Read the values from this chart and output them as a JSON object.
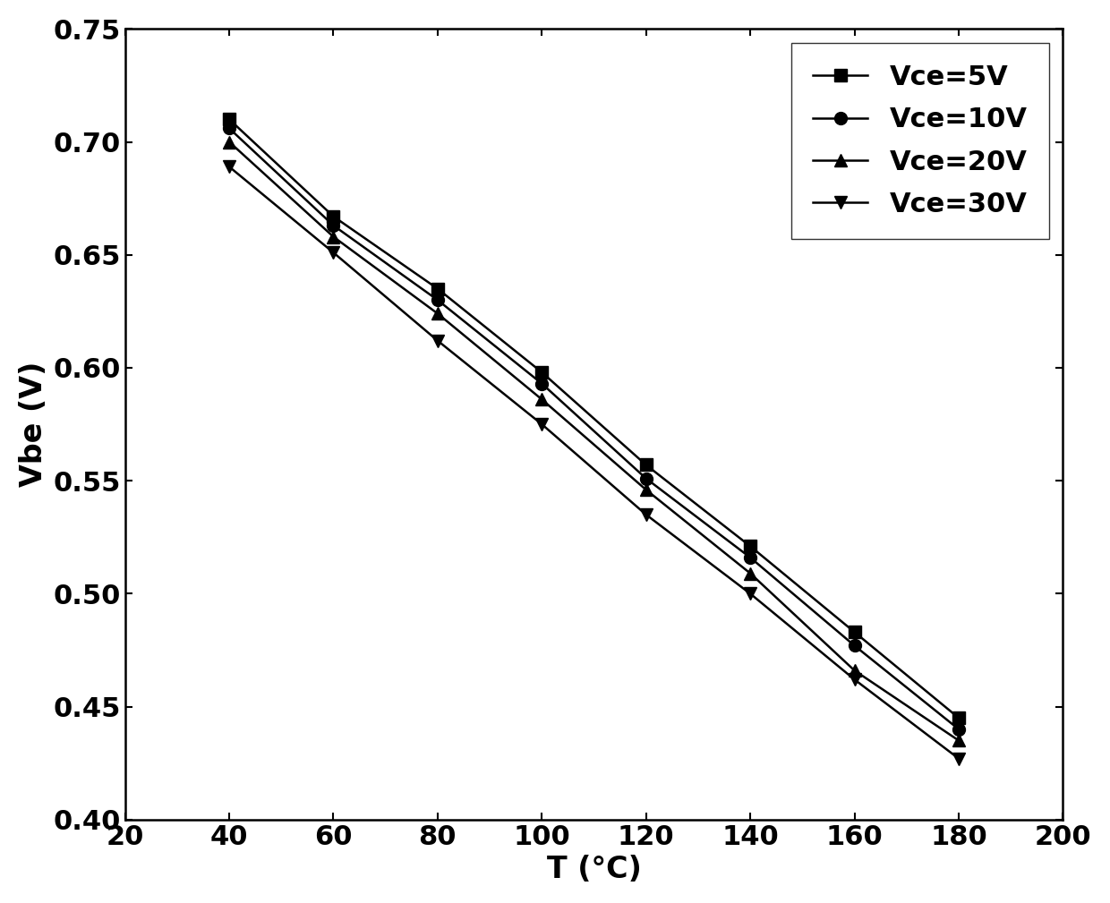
{
  "xlabel": "T (°C)",
  "ylabel": "Vbe (V)",
  "xlim": [
    20,
    200
  ],
  "ylim": [
    0.4,
    0.75
  ],
  "xticks": [
    20,
    40,
    60,
    80,
    100,
    120,
    140,
    160,
    180,
    200
  ],
  "yticks": [
    0.4,
    0.45,
    0.5,
    0.55,
    0.6,
    0.65,
    0.7,
    0.75
  ],
  "T": [
    40,
    60,
    80,
    100,
    120,
    140,
    160,
    180
  ],
  "series": [
    {
      "label": "Vce=5V",
      "marker": "s",
      "values": [
        0.71,
        0.667,
        0.635,
        0.598,
        0.557,
        0.521,
        0.483,
        0.445
      ]
    },
    {
      "label": "Vce=10V",
      "marker": "o",
      "values": [
        0.706,
        0.663,
        0.63,
        0.593,
        0.551,
        0.516,
        0.477,
        0.44
      ]
    },
    {
      "label": "Vce=20V",
      "marker": "^",
      "values": [
        0.7,
        0.658,
        0.624,
        0.586,
        0.546,
        0.509,
        0.466,
        0.435
      ]
    },
    {
      "label": "Vce=30V",
      "marker": "v",
      "values": [
        0.689,
        0.651,
        0.612,
        0.575,
        0.535,
        0.5,
        0.462,
        0.427
      ]
    }
  ],
  "line_color": "#000000",
  "marker_color": "#000000",
  "marker_size": 10,
  "linewidth": 1.8,
  "legend_fontsize": 22,
  "axis_label_fontsize": 24,
  "tick_fontsize": 22,
  "background_color": "#ffffff"
}
